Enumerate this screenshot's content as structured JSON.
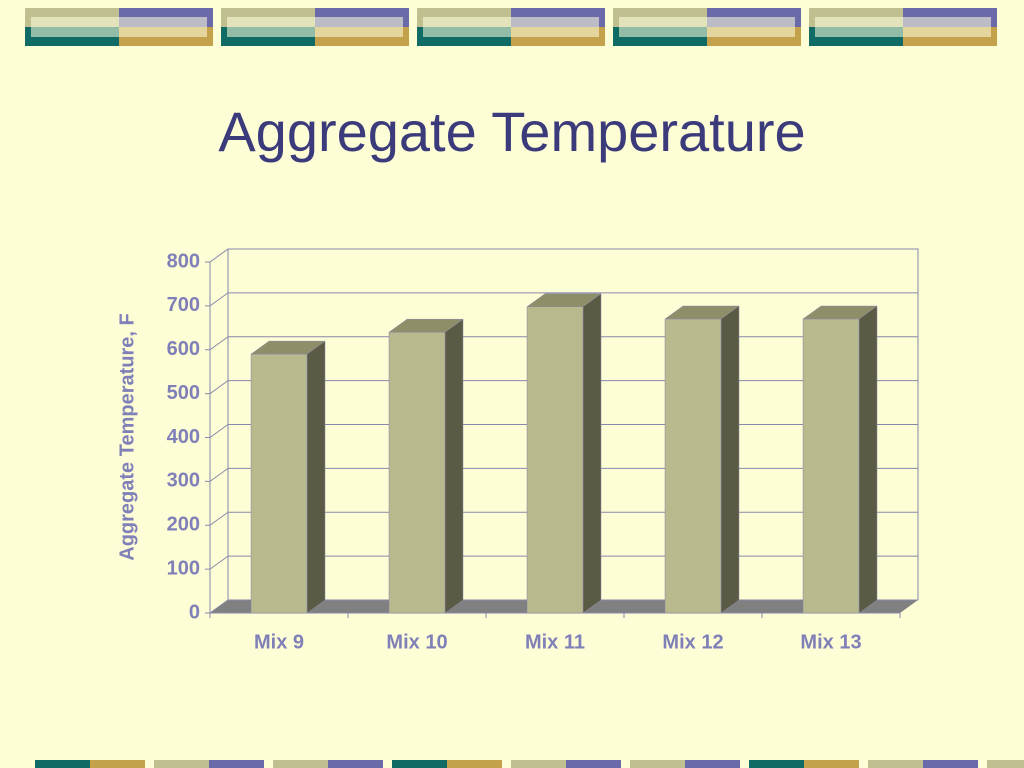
{
  "chart_data": {
    "type": "bar",
    "title": "Aggregate Temperature",
    "y_label": "Aggregate Temperature, F",
    "categories": [
      "Mix 9",
      "Mix 10",
      "Mix 11",
      "Mix 12",
      "Mix 13"
    ],
    "values": [
      590,
      640,
      698,
      670,
      670
    ],
    "color": "#b9b98e",
    "ylim": [
      0,
      800
    ],
    "yticks": [
      0,
      100,
      200,
      300,
      400,
      500,
      600,
      700,
      800
    ],
    "grid": true
  }
}
